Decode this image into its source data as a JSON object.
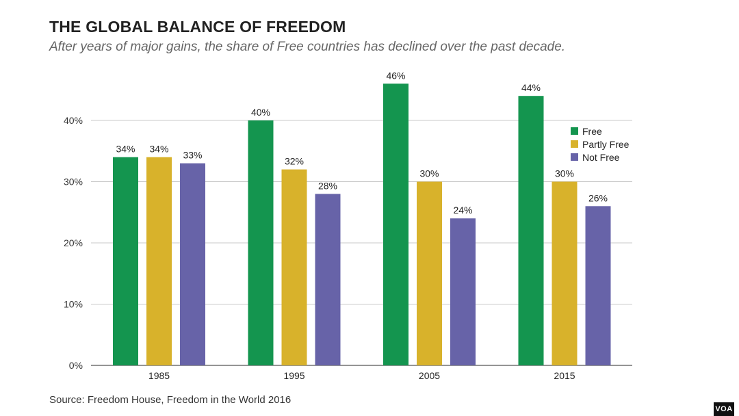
{
  "header": {
    "title": "THE GLOBAL BALANCE OF FREEDOM",
    "subtitle": "After years of major gains, the share of Free countries has declined over the past decade."
  },
  "footer": {
    "source": "Source: Freedom House, Freedom in the World 2016",
    "badge": "VOA"
  },
  "chart_data": {
    "type": "bar",
    "title": "THE GLOBAL BALANCE OF FREEDOM",
    "categories": [
      "1985",
      "1995",
      "2005",
      "2015"
    ],
    "series": [
      {
        "name": "Free",
        "values": [
          34,
          40,
          46,
          44
        ],
        "color": "#14954f"
      },
      {
        "name": "Partly Free",
        "values": [
          34,
          32,
          30,
          30
        ],
        "color": "#d8b22b"
      },
      {
        "name": "Not Free",
        "values": [
          33,
          28,
          24,
          26
        ],
        "color": "#6763a8"
      }
    ],
    "value_labels": [
      [
        "34%",
        "40%",
        "46%",
        "44%"
      ],
      [
        "34%",
        "32%",
        "30%",
        "30%"
      ],
      [
        "33%",
        "28%",
        "24%",
        "26%"
      ]
    ],
    "yticks": [
      0,
      10,
      20,
      30,
      40
    ],
    "ytick_labels": [
      "0%",
      "10%",
      "20%",
      "30%",
      "40%"
    ],
    "ylim": [
      0,
      46
    ],
    "grid": true,
    "legend_position": "right",
    "xlabel": "",
    "ylabel": ""
  }
}
